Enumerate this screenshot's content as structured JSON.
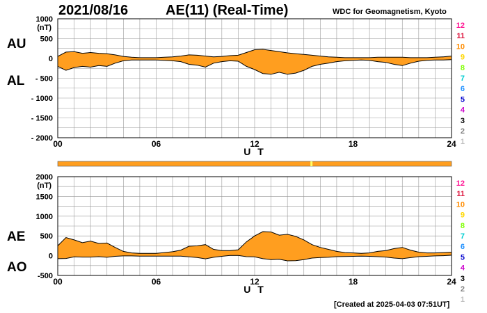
{
  "header": {
    "date": "2021/08/16",
    "title": "AE(11) (Real-Time)",
    "source": "WDC for Geomagnetism, Kyoto"
  },
  "footer": {
    "created": "[Created at 2025-04-03 07:51UT]"
  },
  "colors": {
    "fill": "#ff9e1f",
    "line": "#000000",
    "grid": "#999999",
    "bar": "#ff9e1f",
    "bar_marker": "#ffff66"
  },
  "legend": {
    "items": [
      {
        "label": "12",
        "color": "#ff1493"
      },
      {
        "label": "11",
        "color": "#dc143c"
      },
      {
        "label": "10",
        "color": "#ff8c00"
      },
      {
        "label": "9",
        "color": "#ffd700"
      },
      {
        "label": "8",
        "color": "#7fff00"
      },
      {
        "label": "7",
        "color": "#00ced1"
      },
      {
        "label": "6",
        "color": "#1e90ff"
      },
      {
        "label": "5",
        "color": "#0000cd"
      },
      {
        "label": "4",
        "color": "#cc00cc"
      },
      {
        "label": "3",
        "color": "#000000"
      },
      {
        "label": "2",
        "color": "#808080"
      },
      {
        "label": "1",
        "color": "#c0c0c0"
      }
    ]
  },
  "chart_data": [
    {
      "type": "area",
      "upper_series": "AU",
      "lower_series": "AL",
      "unit_label": "(nT)",
      "xlabel": "U T",
      "xlim": [
        0,
        24
      ],
      "ylim": [
        -2000,
        1000
      ],
      "xticks": [
        "00",
        "06",
        "12",
        "18",
        "24"
      ],
      "yticks": [
        "1000",
        "500",
        "0",
        "- 500",
        "- 1000",
        "- 1500",
        "- 2000"
      ],
      "grid": true,
      "x": [
        0,
        0.5,
        1,
        1.5,
        2,
        2.5,
        3,
        3.5,
        4,
        4.5,
        5,
        5.5,
        6,
        6.5,
        7,
        7.5,
        8,
        8.5,
        9,
        9.5,
        10,
        10.5,
        11,
        11.5,
        12,
        12.5,
        13,
        13.5,
        14,
        14.5,
        15,
        15.5,
        16,
        16.5,
        17,
        17.5,
        18,
        18.5,
        19,
        19.5,
        20,
        20.5,
        21,
        21.5,
        22,
        22.5,
        23,
        23.5,
        24
      ],
      "AU": [
        50,
        160,
        170,
        130,
        150,
        130,
        120,
        90,
        50,
        30,
        20,
        20,
        20,
        30,
        40,
        60,
        90,
        80,
        60,
        40,
        50,
        70,
        80,
        150,
        220,
        230,
        200,
        170,
        140,
        120,
        100,
        80,
        60,
        40,
        30,
        20,
        20,
        20,
        20,
        30,
        30,
        30,
        30,
        20,
        20,
        20,
        30,
        40,
        60
      ],
      "AL": [
        -200,
        -300,
        -230,
        -200,
        -220,
        -180,
        -200,
        -120,
        -60,
        -40,
        -40,
        -40,
        -40,
        -50,
        -60,
        -80,
        -150,
        -170,
        -220,
        -120,
        -80,
        -60,
        -70,
        -200,
        -280,
        -380,
        -400,
        -350,
        -400,
        -370,
        -300,
        -200,
        -150,
        -120,
        -80,
        -60,
        -50,
        -40,
        -50,
        -80,
        -100,
        -150,
        -180,
        -120,
        -70,
        -50,
        -40,
        -40,
        -30
      ]
    },
    {
      "type": "area",
      "upper_series": "AE",
      "lower_series": "AO",
      "unit_label": "(nT)",
      "xlabel": "U T",
      "xlim": [
        0,
        24
      ],
      "ylim": [
        -500,
        2000
      ],
      "xticks": [
        "00",
        "06",
        "12",
        "18",
        "24"
      ],
      "yticks": [
        "2000",
        "1500",
        "1000",
        "500",
        "0",
        "-500"
      ],
      "grid": true,
      "x": [
        0,
        0.5,
        1,
        1.5,
        2,
        2.5,
        3,
        3.5,
        4,
        4.5,
        5,
        5.5,
        6,
        6.5,
        7,
        7.5,
        8,
        8.5,
        9,
        9.5,
        10,
        10.5,
        11,
        11.5,
        12,
        12.5,
        13,
        13.5,
        14,
        14.5,
        15,
        15.5,
        16,
        16.5,
        17,
        17.5,
        18,
        18.5,
        19,
        19.5,
        20,
        20.5,
        21,
        21.5,
        22,
        22.5,
        23,
        23.5,
        24
      ],
      "AE": [
        250,
        460,
        400,
        330,
        370,
        310,
        320,
        210,
        110,
        70,
        60,
        60,
        60,
        80,
        100,
        140,
        240,
        250,
        280,
        160,
        130,
        130,
        150,
        350,
        500,
        610,
        600,
        520,
        540,
        490,
        400,
        280,
        210,
        160,
        110,
        80,
        70,
        60,
        70,
        110,
        130,
        180,
        210,
        140,
        90,
        70,
        70,
        80,
        90
      ],
      "AO": [
        -75,
        -70,
        -30,
        -35,
        -35,
        -25,
        -40,
        -15,
        -5,
        -5,
        -10,
        -10,
        -10,
        -10,
        -10,
        -10,
        -30,
        -45,
        -80,
        -40,
        -15,
        5,
        5,
        -25,
        -30,
        -75,
        -100,
        -90,
        -130,
        -125,
        -100,
        -60,
        -45,
        -40,
        -25,
        -20,
        -15,
        -10,
        -15,
        -25,
        -35,
        -60,
        -75,
        -50,
        -25,
        -15,
        -5,
        0,
        15
      ]
    }
  ]
}
